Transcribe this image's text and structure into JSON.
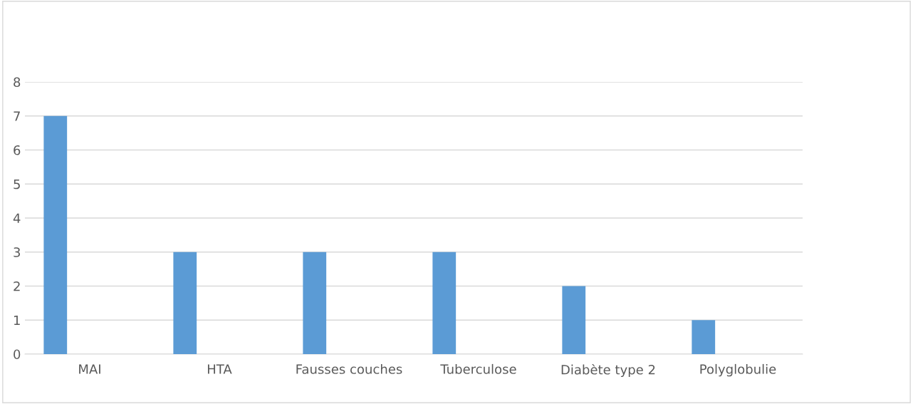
{
  "chart_data": {
    "type": "bar",
    "categories": [
      "MAI",
      "HTA",
      "Fausses couches",
      "Tuberculose",
      "Diabète type 2",
      "Polyglobulie"
    ],
    "values": [
      7,
      3,
      3,
      3,
      2,
      1
    ],
    "color": "#5b9bd5",
    "ylim": [
      0,
      8
    ],
    "yticks": [
      0,
      1,
      2,
      3,
      4,
      5,
      6,
      7,
      8
    ],
    "grid": "y",
    "legend": false
  }
}
